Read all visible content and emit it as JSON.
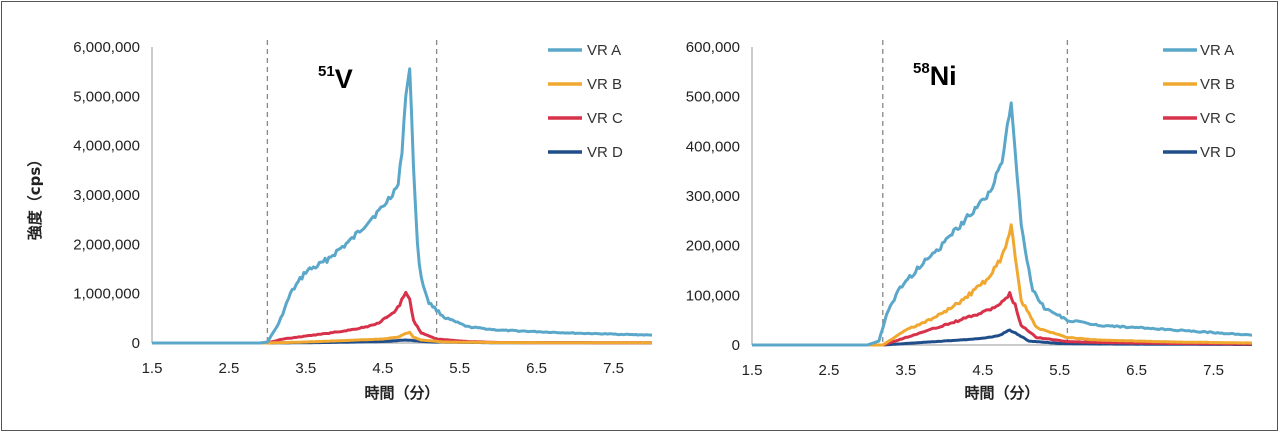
{
  "chart_data": [
    {
      "type": "line",
      "element_label": {
        "mass": "51",
        "symbol": "V"
      },
      "xlabel": "時間（分）",
      "ylabel": "強度（cps）",
      "xlim": [
        1.5,
        8.0
      ],
      "ylim": [
        0,
        6000000
      ],
      "x_ticks": [
        "1.5",
        "2.5",
        "3.5",
        "4.5",
        "5.5",
        "6.5",
        "7.5"
      ],
      "y_ticks": [
        "0",
        "1,000,000",
        "2,000,000",
        "3,000,000",
        "4,000,000",
        "5,000,000",
        "6,000,000"
      ],
      "y_tick_values": [
        0,
        1000000,
        2000000,
        3000000,
        4000000,
        5000000,
        6000000
      ],
      "x_tick_values": [
        1.5,
        2.5,
        3.5,
        4.5,
        5.5,
        6.5,
        7.5
      ],
      "vlines": [
        3.0,
        5.2
      ],
      "legend_position": "top-right",
      "series": [
        {
          "name": "VR A",
          "color": "#5ba7c9",
          "x": [
            1.5,
            2.9,
            3.0,
            3.15,
            3.3,
            3.5,
            3.7,
            3.9,
            4.1,
            4.3,
            4.5,
            4.7,
            4.75,
            4.8,
            4.85,
            4.9,
            4.95,
            5.0,
            5.1,
            5.3,
            5.6,
            6.0,
            6.5,
            7.0,
            7.5,
            8.0
          ],
          "y": [
            0,
            0,
            20000,
            400000,
            1000000,
            1450000,
            1600000,
            1850000,
            2100000,
            2450000,
            2750000,
            3200000,
            3900000,
            5050000,
            5550000,
            3600000,
            2000000,
            1300000,
            820000,
            520000,
            330000,
            260000,
            230000,
            200000,
            180000,
            160000
          ]
        },
        {
          "name": "VR B",
          "color": "#f0a830",
          "x": [
            1.5,
            3.0,
            3.5,
            4.0,
            4.5,
            4.7,
            4.8,
            4.85,
            4.9,
            5.0,
            5.3,
            6.0,
            8.0
          ],
          "y": [
            0,
            0,
            20000,
            50000,
            80000,
            120000,
            200000,
            210000,
            120000,
            60000,
            20000,
            8000,
            5000
          ]
        },
        {
          "name": "VR C",
          "color": "#d8314a",
          "x": [
            1.5,
            3.0,
            3.2,
            3.5,
            3.8,
            4.1,
            4.4,
            4.6,
            4.72,
            4.8,
            4.85,
            4.9,
            5.0,
            5.2,
            5.6,
            6.0,
            8.0
          ],
          "y": [
            0,
            0,
            80000,
            140000,
            200000,
            270000,
            370000,
            560000,
            770000,
            1050000,
            900000,
            450000,
            200000,
            80000,
            30000,
            10000,
            5000
          ]
        },
        {
          "name": "VR D",
          "color": "#1f4e8a",
          "x": [
            1.5,
            3.0,
            3.5,
            4.0,
            4.5,
            4.8,
            4.9,
            5.1,
            6.0,
            8.0
          ],
          "y": [
            0,
            0,
            5000,
            15000,
            30000,
            60000,
            50000,
            20000,
            5000,
            2000
          ]
        }
      ]
    },
    {
      "type": "line",
      "element_label": {
        "mass": "58",
        "symbol": "Ni"
      },
      "xlabel": "時間（分）",
      "ylabel": "",
      "xlim": [
        1.5,
        8.0
      ],
      "ylim": [
        0,
        600000
      ],
      "x_ticks": [
        "1.5",
        "2.5",
        "3.5",
        "4.5",
        "5.5",
        "6.5",
        "7.5"
      ],
      "y_ticks": [
        "0",
        "100,000",
        "200,000",
        "300,000",
        "400,000",
        "500,000",
        "600,000"
      ],
      "y_tick_values": [
        0,
        100000,
        200000,
        300000,
        400000,
        500000,
        600000
      ],
      "x_tick_values": [
        1.5,
        2.5,
        3.5,
        4.5,
        5.5,
        6.5,
        7.5
      ],
      "vlines": [
        3.2,
        5.6
      ],
      "legend_position": "top-right",
      "series": [
        {
          "name": "VR A",
          "color": "#5ba7c9",
          "x": [
            1.5,
            3.0,
            3.15,
            3.25,
            3.4,
            3.6,
            3.8,
            4.0,
            4.2,
            4.4,
            4.6,
            4.75,
            4.82,
            4.87,
            4.92,
            5.0,
            5.15,
            5.3,
            5.6,
            6.0,
            6.5,
            7.0,
            7.5,
            8.0
          ],
          "y": [
            0,
            0,
            8000,
            60000,
            110000,
            145000,
            175000,
            205000,
            240000,
            275000,
            310000,
            370000,
            440000,
            485000,
            390000,
            240000,
            110000,
            75000,
            50000,
            40000,
            35000,
            30000,
            25000,
            20000
          ]
        },
        {
          "name": "VR B",
          "color": "#f0a830",
          "x": [
            1.5,
            3.2,
            3.5,
            3.8,
            4.1,
            4.4,
            4.6,
            4.75,
            4.82,
            4.87,
            4.92,
            5.0,
            5.2,
            5.6,
            6.0,
            7.0,
            8.0
          ],
          "y": [
            0,
            0,
            30000,
            50000,
            75000,
            110000,
            140000,
            175000,
            215000,
            240000,
            175000,
            90000,
            35000,
            15000,
            10000,
            6000,
            4000
          ]
        },
        {
          "name": "VR C",
          "color": "#d8314a",
          "x": [
            1.5,
            3.2,
            3.5,
            3.8,
            4.1,
            4.4,
            4.6,
            4.75,
            4.85,
            4.92,
            5.0,
            5.2,
            5.6,
            6.0,
            7.0,
            8.0
          ],
          "y": [
            0,
            0,
            15000,
            30000,
            45000,
            60000,
            72000,
            85000,
            102000,
            80000,
            40000,
            15000,
            7000,
            5000,
            3000,
            2000
          ]
        },
        {
          "name": "VR D",
          "color": "#1f4e8a",
          "x": [
            1.5,
            3.2,
            3.6,
            4.0,
            4.4,
            4.7,
            4.85,
            4.95,
            5.1,
            5.5,
            6.0,
            8.0
          ],
          "y": [
            0,
            0,
            4000,
            8000,
            12000,
            18000,
            30000,
            22000,
            8000,
            3000,
            2000,
            1000
          ]
        }
      ]
    }
  ]
}
